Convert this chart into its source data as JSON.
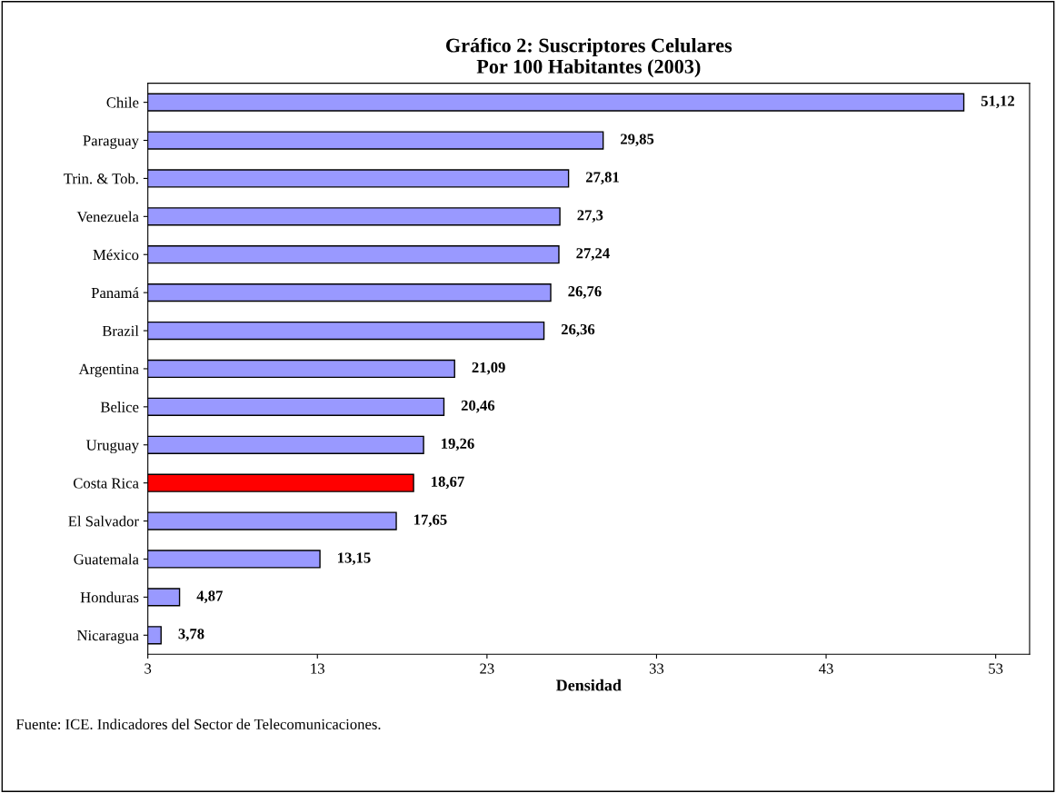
{
  "chart_data": {
    "type": "bar",
    "orientation": "horizontal",
    "title": "Gráfico 2: Suscriptores Celulares\nPor 100 Habitantes (2003)",
    "xlabel": "Densidad",
    "categories": [
      "Chile",
      "Paraguay",
      "Trin. & Tob.",
      "Venezuela",
      "México",
      "Panamá",
      "Brazil",
      "Argentina",
      "Belice",
      "Uruguay",
      "Costa Rica",
      "El Salvador",
      "Guatemala",
      "Honduras",
      "Nicaragua"
    ],
    "values": [
      51.12,
      29.85,
      27.81,
      27.3,
      27.24,
      26.76,
      26.36,
      21.09,
      20.46,
      19.26,
      18.67,
      17.65,
      13.15,
      4.87,
      3.78
    ],
    "value_labels": [
      "51,12",
      "29,85",
      "27,81",
      "27,3",
      "27,24",
      "26,76",
      "26,36",
      "21,09",
      "20,46",
      "19,26",
      "18,67",
      "17,65",
      "13,15",
      "4,87",
      "3,78"
    ],
    "colors": [
      "#9999ff",
      "#9999ff",
      "#9999ff",
      "#9999ff",
      "#9999ff",
      "#9999ff",
      "#9999ff",
      "#9999ff",
      "#9999ff",
      "#9999ff",
      "#ff0000",
      "#9999ff",
      "#9999ff",
      "#9999ff",
      "#9999ff"
    ],
    "xlim": [
      3,
      55
    ],
    "xticks": [
      3,
      13,
      23,
      33,
      43,
      53
    ],
    "grid": false,
    "annotations": [
      "Fuente: ICE. Indicadores del Sector de Telecomunicaciones."
    ]
  }
}
